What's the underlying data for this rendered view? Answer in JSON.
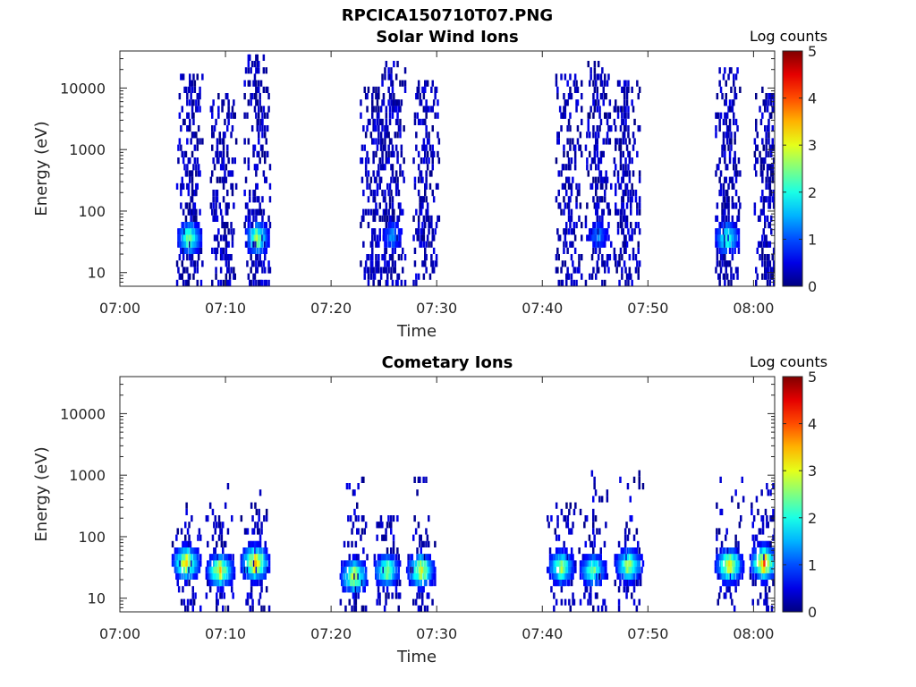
{
  "figure": {
    "title": "RPCICA150710T07.PNG"
  },
  "chart_data": [
    {
      "type": "heatmap",
      "title": "Solar Wind Ions",
      "xlabel": "Time",
      "ylabel": "Energy (eV)",
      "xlim": [
        "07:00",
        "08:02"
      ],
      "ylim": [
        6,
        40000
      ],
      "yscale": "log",
      "x_ticks": [
        "07:00",
        "07:10",
        "07:20",
        "07:30",
        "07:40",
        "07:50",
        "08:00"
      ],
      "y_ticks": [
        "10",
        "100",
        "1000",
        "10000"
      ],
      "colorbar": {
        "label": "Log counts",
        "range": [
          0,
          5
        ],
        "ticks": [
          "0",
          "1",
          "2",
          "3",
          "4",
          "5"
        ]
      },
      "bursts": [
        {
          "center_min": 6.6,
          "energy_peak_eV": 32,
          "peak_log_counts": 3.0,
          "max_energy_eV": 17000
        },
        {
          "center_min": 9.8,
          "energy_peak_eV": 0,
          "peak_log_counts": 0.3,
          "max_energy_eV": 8000
        },
        {
          "center_min": 13.0,
          "energy_peak_eV": 32,
          "peak_log_counts": 3.0,
          "max_energy_eV": 28000
        },
        {
          "center_min": 24.0,
          "energy_peak_eV": 0,
          "peak_log_counts": 0.3,
          "max_energy_eV": 10000
        },
        {
          "center_min": 25.8,
          "energy_peak_eV": 35,
          "peak_log_counts": 1.6,
          "max_energy_eV": 26000
        },
        {
          "center_min": 29.0,
          "energy_peak_eV": 0,
          "peak_log_counts": 0.3,
          "max_energy_eV": 12000
        },
        {
          "center_min": 42.5,
          "energy_peak_eV": 0,
          "peak_log_counts": 0.3,
          "max_energy_eV": 15000
        },
        {
          "center_min": 45.3,
          "energy_peak_eV": 35,
          "peak_log_counts": 1.5,
          "max_energy_eV": 23000
        },
        {
          "center_min": 48.0,
          "energy_peak_eV": 0,
          "peak_log_counts": 0.3,
          "max_energy_eV": 12000
        },
        {
          "center_min": 57.5,
          "energy_peak_eV": 32,
          "peak_log_counts": 2.7,
          "max_energy_eV": 20000
        },
        {
          "center_min": 61.3,
          "energy_peak_eV": 0,
          "peak_log_counts": 0.3,
          "max_energy_eV": 10000
        }
      ]
    },
    {
      "type": "heatmap",
      "title": "Cometary Ions",
      "xlabel": "Time",
      "ylabel": "Energy (eV)",
      "xlim": [
        "07:00",
        "08:02"
      ],
      "ylim": [
        6,
        40000
      ],
      "yscale": "log",
      "x_ticks": [
        "07:00",
        "07:10",
        "07:20",
        "07:30",
        "07:40",
        "07:50",
        "08:00"
      ],
      "y_ticks": [
        "10",
        "100",
        "1000",
        "10000"
      ],
      "colorbar": {
        "label": "Log counts",
        "range": [
          0,
          5
        ],
        "ticks": [
          "0",
          "1",
          "2",
          "3",
          "4",
          "5"
        ]
      },
      "bursts": [
        {
          "center_min": 6.3,
          "energy_peak_eV": 33,
          "peak_log_counts": 3.7,
          "max_energy_eV": 350
        },
        {
          "center_min": 9.5,
          "energy_peak_eV": 25,
          "peak_log_counts": 3.6,
          "max_energy_eV": 1200
        },
        {
          "center_min": 12.8,
          "energy_peak_eV": 33,
          "peak_log_counts": 4.2,
          "max_energy_eV": 500
        },
        {
          "center_min": 22.2,
          "energy_peak_eV": 20,
          "peak_log_counts": 3.5,
          "max_energy_eV": 900
        },
        {
          "center_min": 25.3,
          "energy_peak_eV": 25,
          "peak_log_counts": 3.0,
          "max_energy_eV": 200
        },
        {
          "center_min": 28.5,
          "energy_peak_eV": 25,
          "peak_log_counts": 3.6,
          "max_energy_eV": 900
        },
        {
          "center_min": 41.8,
          "energy_peak_eV": 28,
          "peak_log_counts": 3.1,
          "max_energy_eV": 300
        },
        {
          "center_min": 44.8,
          "energy_peak_eV": 25,
          "peak_log_counts": 2.8,
          "max_energy_eV": 1000
        },
        {
          "center_min": 48.2,
          "energy_peak_eV": 30,
          "peak_log_counts": 3.2,
          "max_energy_eV": 1100
        },
        {
          "center_min": 57.7,
          "energy_peak_eV": 30,
          "peak_log_counts": 3.7,
          "max_energy_eV": 800
        },
        {
          "center_min": 61.0,
          "energy_peak_eV": 33,
          "peak_log_counts": 4.2,
          "max_energy_eV": 700
        }
      ]
    }
  ]
}
